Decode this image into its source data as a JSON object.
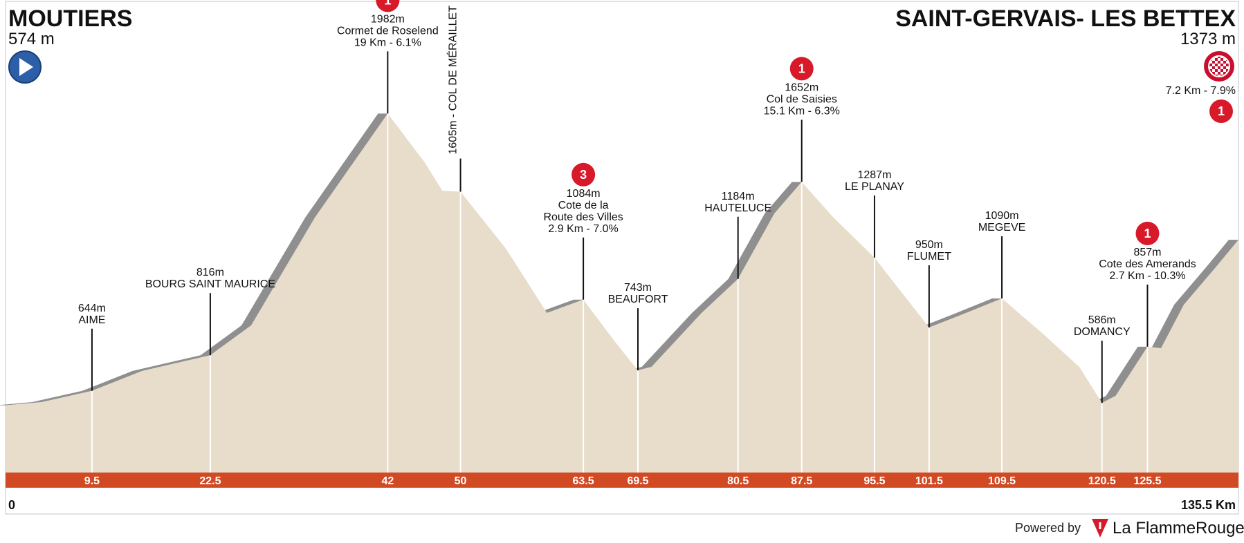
{
  "colors": {
    "terrain": "#e8dccb",
    "slope_shadow": "#8f8f8f",
    "km_bar": "#d24a24",
    "badge": "#d7192a",
    "start_icon": "#2c5fa8"
  },
  "start": {
    "name": "MOUTIERS",
    "altitude": "574 m",
    "icon": "play-icon"
  },
  "finish": {
    "name": "SAINT-GERVAIS- LES BETTEX",
    "altitude": "1373 m",
    "icon": "checkered-flag-icon"
  },
  "finish_climb": {
    "stat": "7.2 Km - 7.9%",
    "category": "1"
  },
  "axis": {
    "start_label": "0",
    "end_label": "135.5 Km"
  },
  "footer": {
    "powered_by": "Powered by",
    "brand": "La FlammeRouge",
    "brand_icon": "flamme-rouge-icon"
  },
  "chart_data": {
    "type": "area",
    "title": "",
    "xlabel": "",
    "ylabel": "",
    "x_unit": "km",
    "y_unit": "m",
    "xlim": [
      0,
      135.5
    ],
    "profile": [
      [
        0,
        574
      ],
      [
        4,
        590
      ],
      [
        9.5,
        644
      ],
      [
        15,
        740
      ],
      [
        22.5,
        816
      ],
      [
        27,
        960
      ],
      [
        34,
        1480
      ],
      [
        42,
        1982
      ],
      [
        46,
        1750
      ],
      [
        48,
        1610
      ],
      [
        50,
        1605
      ],
      [
        55,
        1330
      ],
      [
        59.5,
        1020
      ],
      [
        63.5,
        1084
      ],
      [
        67,
        880
      ],
      [
        69.5,
        743
      ],
      [
        71,
        760
      ],
      [
        76.5,
        1020
      ],
      [
        80.5,
        1184
      ],
      [
        84.5,
        1500
      ],
      [
        87.5,
        1652
      ],
      [
        91,
        1480
      ],
      [
        95.5,
        1287
      ],
      [
        99,
        1090
      ],
      [
        101.5,
        950
      ],
      [
        105,
        1010
      ],
      [
        109.5,
        1090
      ],
      [
        114,
        920
      ],
      [
        118,
        760
      ],
      [
        120.5,
        586
      ],
      [
        122,
        620
      ],
      [
        125.5,
        857
      ],
      [
        127,
        850
      ],
      [
        129.5,
        1060
      ],
      [
        133,
        1240
      ],
      [
        135.5,
        1373
      ]
    ],
    "km_marks": [
      "9.5",
      "22.5",
      "42",
      "50",
      "63.5",
      "69.5",
      "80.5",
      "87.5",
      "95.5",
      "101.5",
      "109.5",
      "120.5",
      "125.5"
    ],
    "waypoints": [
      {
        "km": 9.5,
        "alt": 644,
        "lines": [
          "644m",
          "AIME"
        ],
        "category": ""
      },
      {
        "km": 22.5,
        "alt": 816,
        "lines": [
          "816m",
          "BOURG SAINT MAURICE"
        ],
        "category": ""
      },
      {
        "km": 42,
        "alt": 1982,
        "lines": [
          "1982m",
          "Cormet de Roselend",
          "19 Km - 6.1%"
        ],
        "category": "1"
      },
      {
        "km": 50,
        "alt": 1605,
        "lines": [
          "1605m - COL DE MÉRAILLET"
        ],
        "category": "",
        "vertical": true
      },
      {
        "km": 63.5,
        "alt": 1084,
        "lines": [
          "1084m",
          "Cote de la",
          "Route des Villes",
          "2.9 Km - 7.0%"
        ],
        "category": "3"
      },
      {
        "km": 69.5,
        "alt": 743,
        "lines": [
          "743m",
          "BEAUFORT"
        ],
        "category": ""
      },
      {
        "km": 80.5,
        "alt": 1184,
        "lines": [
          "1184m",
          "HAUTELUCE"
        ],
        "category": ""
      },
      {
        "km": 87.5,
        "alt": 1652,
        "lines": [
          "1652m",
          "Col de Saisies",
          "15.1 Km - 6.3%"
        ],
        "category": "1"
      },
      {
        "km": 95.5,
        "alt": 1287,
        "lines": [
          "1287m",
          "LE PLANAY"
        ],
        "category": ""
      },
      {
        "km": 101.5,
        "alt": 950,
        "lines": [
          "950m",
          "FLUMET"
        ],
        "category": ""
      },
      {
        "km": 109.5,
        "alt": 1090,
        "lines": [
          "1090m",
          "MEGEVE"
        ],
        "category": ""
      },
      {
        "km": 120.5,
        "alt": 586,
        "lines": [
          "586m",
          "DOMANCY"
        ],
        "category": ""
      },
      {
        "km": 125.5,
        "alt": 857,
        "lines": [
          "857m",
          "Cote des Amerands",
          "2.7 Km - 10.3%"
        ],
        "category": "1"
      }
    ]
  }
}
